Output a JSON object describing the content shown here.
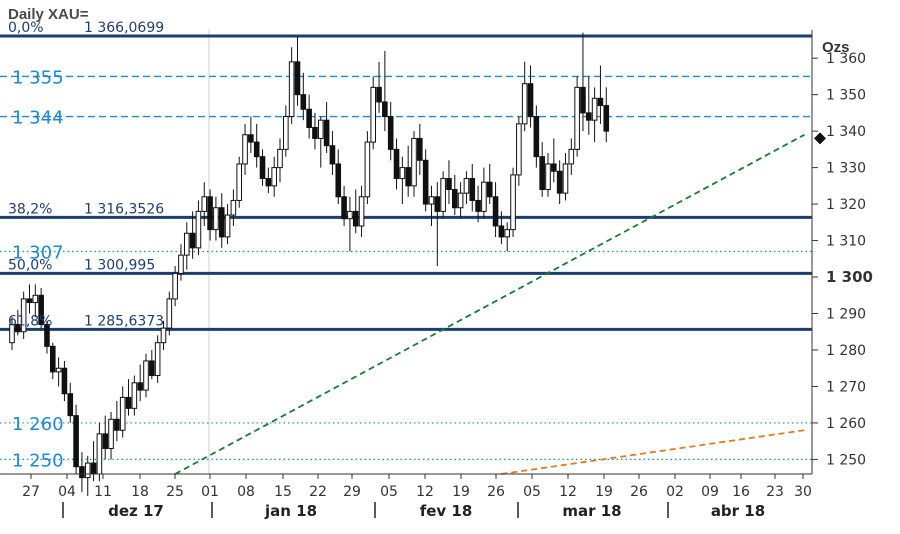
{
  "chart_data": {
    "type": "candlestick",
    "title": "Daily XAU=",
    "unit": "Ozs",
    "ylim": [
      1246,
      1368
    ],
    "y_ticks": [
      1250,
      1260,
      1270,
      1280,
      1290,
      1300,
      1310,
      1320,
      1330,
      1340,
      1350,
      1360
    ],
    "y_tick_labels": [
      "1 250",
      "1 260",
      "1 270",
      "1 280",
      "1 290",
      "1 300",
      "1 310",
      "1 320",
      "1 330",
      "1 340",
      "1 350",
      "1 360"
    ],
    "bold_tick": "1 300",
    "x_ticks": [
      "27",
      "04",
      "11",
      "18",
      "25",
      "01",
      "08",
      "15",
      "22",
      "29",
      "05",
      "12",
      "19",
      "26",
      "05",
      "12",
      "19",
      "26",
      "02",
      "09",
      "16",
      "23",
      "30"
    ],
    "months": [
      "dez 17",
      "jan 18",
      "fev 18",
      "mar 18",
      "abr 18"
    ],
    "fib_levels": [
      {
        "pct": "0,0%",
        "value": 1366.0699,
        "label": "1 366,0699"
      },
      {
        "pct": "38,2%",
        "value": 1316.3526,
        "label": "1 316,3526"
      },
      {
        "pct": "50,0%",
        "value": 1300.995,
        "label": "1 300,995"
      },
      {
        "pct": "61,8%",
        "value": 1285.6373,
        "label": "1 285,6373"
      }
    ],
    "dashed_levels": [
      {
        "value": 1355,
        "label": "1 355"
      },
      {
        "value": 1344,
        "label": "1 344"
      }
    ],
    "dotted_levels": [
      {
        "value": 1307,
        "label": "1 307"
      },
      {
        "value": 1260,
        "label": "1 260"
      },
      {
        "value": 1250,
        "label": "1 250"
      }
    ],
    "last_price": 1338,
    "trendlines": [
      {
        "color": "#1e7a34",
        "from": [
          28,
          1246
        ],
        "to": [
          136,
          1339
        ]
      },
      {
        "color": "#e07b20",
        "from": [
          84,
          1246
        ],
        "to": [
          136,
          1258
        ]
      }
    ],
    "candles": [
      [
        1282,
        1289,
        1280,
        1287
      ],
      [
        1287,
        1291,
        1284,
        1285
      ],
      [
        1285,
        1296,
        1283,
        1294
      ],
      [
        1294,
        1298,
        1290,
        1293
      ],
      [
        1293,
        1298,
        1289,
        1295
      ],
      [
        1295,
        1297,
        1286,
        1287
      ],
      [
        1287,
        1288,
        1279,
        1281
      ],
      [
        1281,
        1282,
        1272,
        1274
      ],
      [
        1274,
        1278,
        1270,
        1275
      ],
      [
        1275,
        1277,
        1266,
        1268
      ],
      [
        1268,
        1271,
        1260,
        1262
      ],
      [
        1262,
        1265,
        1246,
        1248
      ],
      [
        1248,
        1252,
        1241,
        1245
      ],
      [
        1245,
        1251,
        1240,
        1249
      ],
      [
        1249,
        1255,
        1244,
        1246
      ],
      [
        1246,
        1260,
        1244,
        1257
      ],
      [
        1257,
        1262,
        1250,
        1253
      ],
      [
        1253,
        1263,
        1250,
        1261
      ],
      [
        1261,
        1266,
        1255,
        1258
      ],
      [
        1258,
        1270,
        1256,
        1267
      ],
      [
        1267,
        1272,
        1262,
        1264
      ],
      [
        1264,
        1273,
        1262,
        1271
      ],
      [
        1271,
        1276,
        1266,
        1269
      ],
      [
        1269,
        1279,
        1267,
        1277
      ],
      [
        1277,
        1280,
        1272,
        1273
      ],
      [
        1273,
        1284,
        1271,
        1282
      ],
      [
        1282,
        1288,
        1280,
        1286
      ],
      [
        1286,
        1296,
        1284,
        1294
      ],
      [
        1294,
        1303,
        1292,
        1301
      ],
      [
        1301,
        1309,
        1299,
        1306
      ],
      [
        1306,
        1315,
        1302,
        1312
      ],
      [
        1312,
        1318,
        1305,
        1308
      ],
      [
        1308,
        1321,
        1306,
        1318
      ],
      [
        1318,
        1326,
        1314,
        1322
      ],
      [
        1322,
        1324,
        1310,
        1313
      ],
      [
        1313,
        1322,
        1310,
        1319
      ],
      [
        1319,
        1323,
        1308,
        1311
      ],
      [
        1311,
        1320,
        1309,
        1317
      ],
      [
        1317,
        1324,
        1314,
        1321
      ],
      [
        1321,
        1333,
        1319,
        1331
      ],
      [
        1331,
        1342,
        1328,
        1339
      ],
      [
        1339,
        1344,
        1334,
        1337
      ],
      [
        1337,
        1342,
        1330,
        1333
      ],
      [
        1333,
        1335,
        1325,
        1327
      ],
      [
        1327,
        1330,
        1323,
        1325
      ],
      [
        1325,
        1333,
        1322,
        1330
      ],
      [
        1330,
        1338,
        1326,
        1335
      ],
      [
        1335,
        1347,
        1333,
        1344
      ],
      [
        1344,
        1363,
        1342,
        1359
      ],
      [
        1359,
        1366,
        1347,
        1350
      ],
      [
        1350,
        1356,
        1343,
        1346
      ],
      [
        1346,
        1350,
        1338,
        1341
      ],
      [
        1341,
        1345,
        1335,
        1338
      ],
      [
        1338,
        1344,
        1330,
        1343
      ],
      [
        1343,
        1348,
        1334,
        1336
      ],
      [
        1336,
        1340,
        1328,
        1331
      ],
      [
        1331,
        1335,
        1320,
        1322
      ],
      [
        1322,
        1325,
        1314,
        1316
      ],
      [
        1316,
        1322,
        1307,
        1318
      ],
      [
        1318,
        1324,
        1312,
        1314
      ],
      [
        1314,
        1325,
        1311,
        1322
      ],
      [
        1322,
        1340,
        1320,
        1337
      ],
      [
        1337,
        1355,
        1335,
        1352
      ],
      [
        1352,
        1359,
        1345,
        1348
      ],
      [
        1348,
        1362,
        1340,
        1344
      ],
      [
        1344,
        1348,
        1332,
        1335
      ],
      [
        1335,
        1338,
        1324,
        1327
      ],
      [
        1327,
        1333,
        1320,
        1330
      ],
      [
        1330,
        1336,
        1322,
        1325
      ],
      [
        1325,
        1340,
        1322,
        1338
      ],
      [
        1338,
        1342,
        1328,
        1332
      ],
      [
        1332,
        1335,
        1318,
        1320
      ],
      [
        1320,
        1325,
        1314,
        1322
      ],
      [
        1322,
        1326,
        1303,
        1318
      ],
      [
        1318,
        1329,
        1316,
        1327
      ],
      [
        1327,
        1332,
        1320,
        1324
      ],
      [
        1324,
        1328,
        1317,
        1319
      ],
      [
        1319,
        1326,
        1316,
        1323
      ],
      [
        1323,
        1329,
        1320,
        1327
      ],
      [
        1327,
        1331,
        1318,
        1321
      ],
      [
        1321,
        1325,
        1315,
        1318
      ],
      [
        1318,
        1330,
        1316,
        1326
      ],
      [
        1326,
        1331,
        1320,
        1322
      ],
      [
        1322,
        1326,
        1311,
        1314
      ],
      [
        1314,
        1318,
        1309,
        1311
      ],
      [
        1311,
        1315,
        1307,
        1313
      ],
      [
        1313,
        1330,
        1311,
        1328
      ],
      [
        1328,
        1344,
        1325,
        1342
      ],
      [
        1342,
        1359,
        1340,
        1353
      ],
      [
        1353,
        1358,
        1341,
        1344
      ],
      [
        1344,
        1347,
        1330,
        1333
      ],
      [
        1333,
        1337,
        1322,
        1324
      ],
      [
        1324,
        1334,
        1322,
        1331
      ],
      [
        1331,
        1338,
        1326,
        1329
      ],
      [
        1329,
        1332,
        1320,
        1323
      ],
      [
        1323,
        1334,
        1321,
        1331
      ],
      [
        1331,
        1338,
        1328,
        1335
      ],
      [
        1335,
        1355,
        1333,
        1352
      ],
      [
        1352,
        1367,
        1340,
        1345
      ],
      [
        1345,
        1355,
        1339,
        1343
      ],
      [
        1343,
        1352,
        1337,
        1349
      ],
      [
        1349,
        1358,
        1342,
        1347
      ],
      [
        1347,
        1352,
        1337,
        1340
      ]
    ]
  }
}
